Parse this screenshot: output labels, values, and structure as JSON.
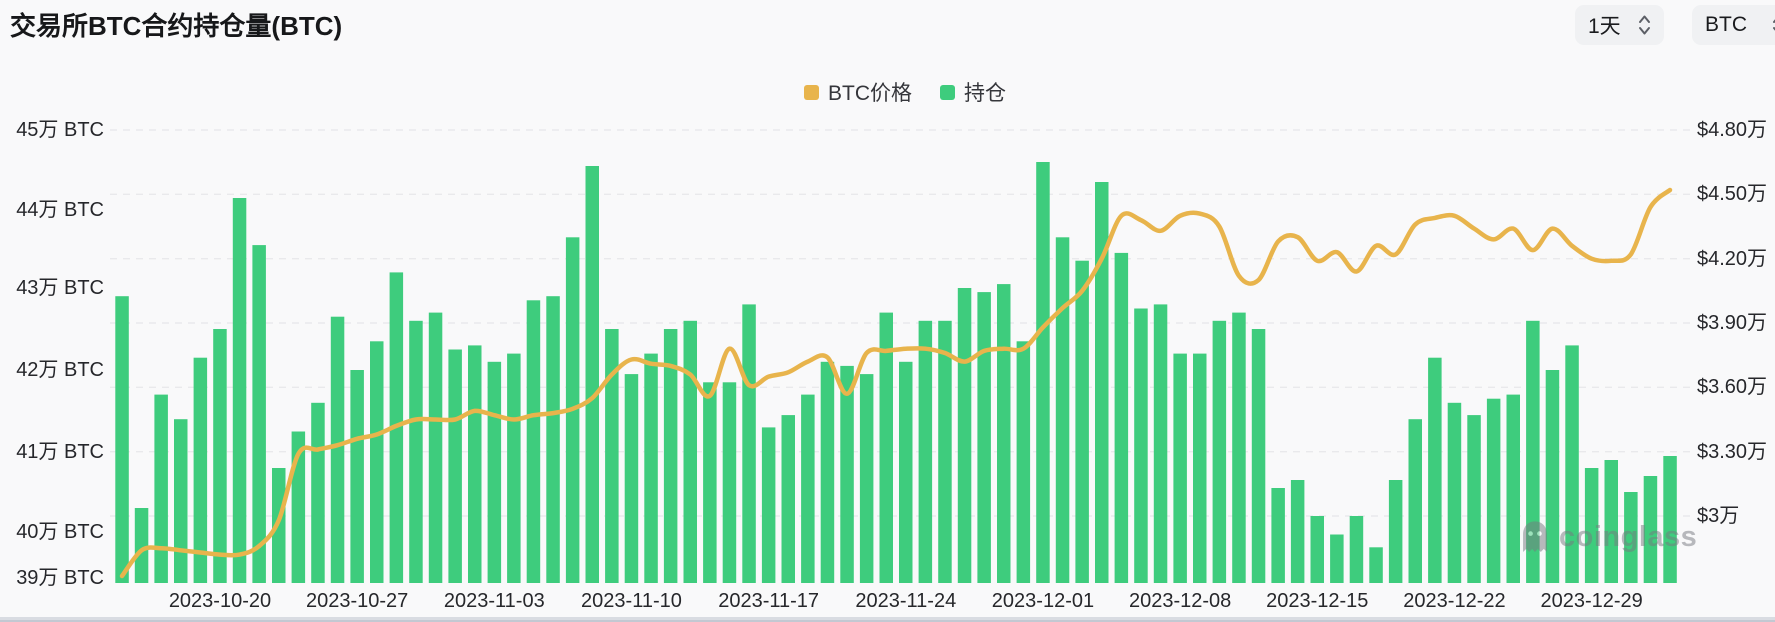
{
  "header": {
    "title": "交易所BTC合约持仓量(BTC)",
    "interval_select": {
      "value": "1天"
    },
    "symbol_select": {
      "value": "BTC"
    }
  },
  "legend": [
    {
      "label": "BTC价格",
      "color": "#e8b44c"
    },
    {
      "label": "持仓",
      "color": "#3ecc7d"
    }
  ],
  "watermark": {
    "text": "coinglass"
  },
  "colors": {
    "background": "#f9f9fa",
    "bar": "#3ecc7d",
    "line": "#e8b44c",
    "grid": "#e9e9ec",
    "tick_text": "#26272b"
  },
  "chart_data": {
    "type": "combo-bar-line",
    "title": "交易所BTC合约持仓量(BTC)",
    "legend_position": "top-center",
    "grid": "dashed-horizontal",
    "x_labels": [
      {
        "index": 5,
        "label": "2023-10-20"
      },
      {
        "index": 12,
        "label": "2023-10-27"
      },
      {
        "index": 19,
        "label": "2023-11-03"
      },
      {
        "index": 26,
        "label": "2023-11-10"
      },
      {
        "index": 33,
        "label": "2023-11-17"
      },
      {
        "index": 40,
        "label": "2023-11-24"
      },
      {
        "index": 47,
        "label": "2023-12-01"
      },
      {
        "index": 54,
        "label": "2023-12-08"
      },
      {
        "index": 61,
        "label": "2023-12-15"
      },
      {
        "index": 68,
        "label": "2023-12-22"
      },
      {
        "index": 75,
        "label": "2023-12-29"
      }
    ],
    "left_axis": {
      "unit": "万 BTC",
      "tick_labels": [
        "45万 BTC",
        "44万 BTC",
        "43万 BTC",
        "42万 BTC",
        "41万 BTC",
        "40万 BTC",
        "39万 BTC"
      ],
      "tick_values": [
        45,
        44,
        43,
        42,
        41,
        40,
        39
      ],
      "min": 39,
      "max": 45
    },
    "right_axis": {
      "unit": "$万",
      "tick_labels": [
        "$4.80万",
        "$4.50万",
        "$4.20万",
        "$3.90万",
        "$3.60万",
        "$3.30万",
        "$3万"
      ],
      "tick_values": [
        4.8,
        4.5,
        4.2,
        3.9,
        3.6,
        3.3,
        3.0
      ],
      "min": 3.0,
      "max": 4.8
    },
    "series": [
      {
        "name": "持仓",
        "type": "bar",
        "axis": "left",
        "color": "#3ecc7d",
        "values": [
          42.9,
          40.3,
          41.7,
          41.4,
          42.15,
          42.5,
          44.15,
          43.55,
          40.8,
          41.25,
          41.6,
          42.65,
          42.0,
          42.35,
          43.2,
          42.6,
          42.7,
          42.25,
          42.3,
          42.1,
          42.2,
          42.85,
          42.9,
          43.65,
          44.55,
          42.5,
          41.95,
          42.2,
          42.5,
          42.6,
          41.85,
          41.85,
          42.8,
          41.3,
          41.45,
          41.7,
          42.1,
          42.05,
          41.95,
          42.7,
          42.1,
          42.6,
          42.6,
          43.0,
          42.95,
          43.05,
          42.35,
          44.6,
          43.65,
          43.35,
          44.35,
          43.45,
          42.75,
          42.8,
          42.2,
          42.2,
          42.6,
          42.7,
          42.5,
          40.55,
          40.65,
          40.2,
          39.95,
          40.2,
          39.7,
          40.65,
          41.4,
          42.15,
          41.6,
          41.45,
          41.65,
          41.7,
          42.6,
          42.0,
          42.3,
          40.8,
          40.9,
          40.5,
          40.7,
          40.95
        ]
      },
      {
        "name": "BTC价格",
        "type": "line",
        "axis": "right",
        "color": "#e8b44c",
        "values": [
          2.72,
          2.84,
          2.85,
          2.84,
          2.83,
          2.82,
          2.82,
          2.86,
          2.98,
          3.29,
          3.31,
          3.33,
          3.36,
          3.38,
          3.42,
          3.45,
          3.45,
          3.45,
          3.49,
          3.47,
          3.45,
          3.47,
          3.48,
          3.5,
          3.55,
          3.66,
          3.73,
          3.71,
          3.7,
          3.66,
          3.56,
          3.78,
          3.61,
          3.65,
          3.67,
          3.72,
          3.74,
          3.57,
          3.76,
          3.77,
          3.78,
          3.78,
          3.76,
          3.72,
          3.77,
          3.78,
          3.78,
          3.88,
          3.97,
          4.05,
          4.2,
          4.4,
          4.38,
          4.33,
          4.4,
          4.41,
          4.35,
          4.12,
          4.1,
          4.28,
          4.3,
          4.19,
          4.23,
          4.14,
          4.26,
          4.22,
          4.36,
          4.39,
          4.4,
          4.34,
          4.29,
          4.34,
          4.24,
          4.34,
          4.26,
          4.2,
          4.19,
          4.22,
          4.44,
          4.52
        ]
      }
    ]
  }
}
